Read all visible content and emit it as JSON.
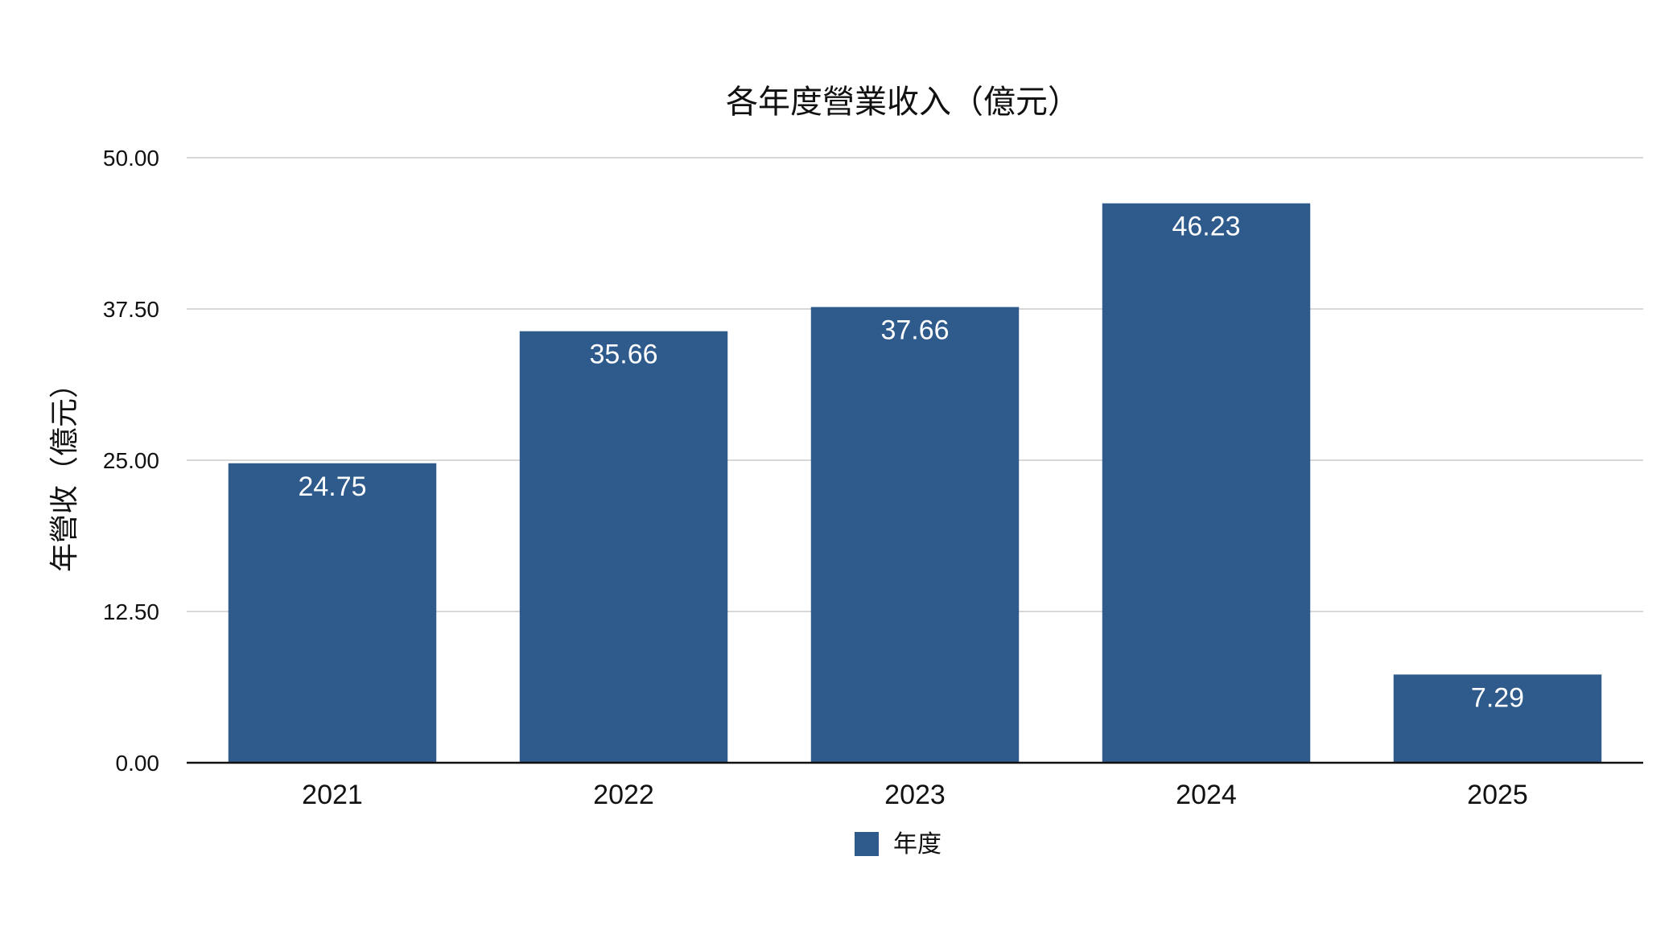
{
  "chart_data": {
    "type": "bar",
    "title": "各年度營業收入（億元）",
    "xlabel": "",
    "ylabel": "年營收（億元）",
    "categories": [
      "2021",
      "2022",
      "2023",
      "2024",
      "2025"
    ],
    "series": [
      {
        "name": "年度",
        "values": [
          24.75,
          35.66,
          37.66,
          46.23,
          7.29
        ],
        "color": "#2e5a8c"
      }
    ],
    "data_labels": [
      "24.75",
      "35.66",
      "37.66",
      "46.23",
      "7.29"
    ],
    "ylim": [
      0,
      50
    ],
    "yticks": [
      0,
      12.5,
      25,
      37.5,
      50
    ],
    "ytick_labels": [
      "0.00",
      "12.50",
      "25.00",
      "37.50",
      "50.00"
    ],
    "grid": true,
    "legend_position": "bottom"
  }
}
